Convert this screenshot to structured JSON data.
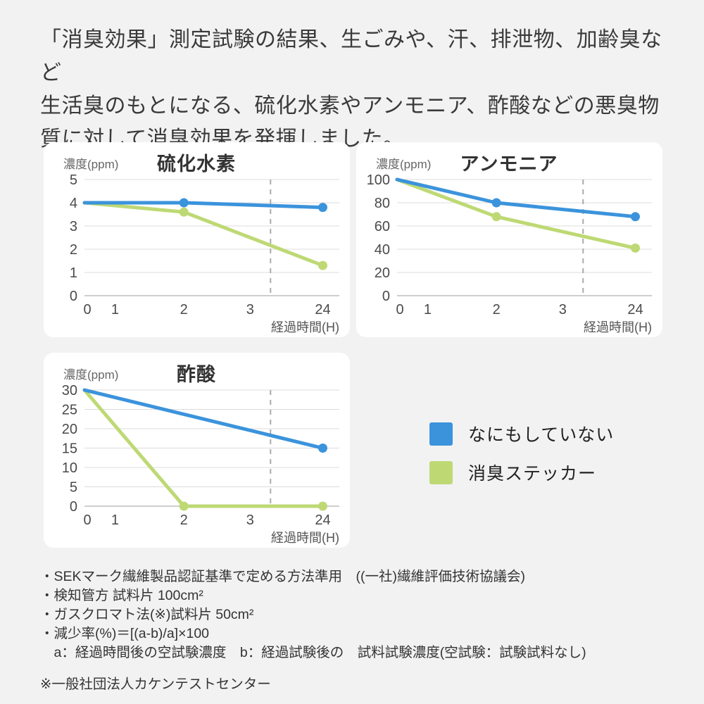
{
  "header": {
    "text": "「消臭効果」測定試験の結果、生ごみや、汗、排泄物、加齢臭など\n生活臭のもとになる、硫化水素やアンモニア、酢酸などの悪臭物\n質に対して消臭効果を発揮しました。"
  },
  "chart_data": [
    {
      "type": "line",
      "title": "硫化水素",
      "unit_label": "濃度(ppm)",
      "xlabel": "経過時間(H)",
      "x_ticks": [
        "0",
        "1",
        "2",
        "3",
        "24"
      ],
      "ylim": [
        0,
        5
      ],
      "y_ticks": [
        0,
        1,
        2,
        3,
        4,
        5
      ],
      "axis_break_dashed_line": true,
      "grid": true,
      "series": [
        {
          "name": "なにもしていない",
          "color": "#3b93dc",
          "x": [
            0,
            2,
            24
          ],
          "values": [
            4,
            4,
            3.8
          ]
        },
        {
          "name": "消臭ステッカー",
          "color": "#bed974",
          "x": [
            0,
            2,
            24
          ],
          "values": [
            4,
            3.6,
            1.3
          ]
        }
      ]
    },
    {
      "type": "line",
      "title": "アンモニア",
      "unit_label": "濃度(ppm)",
      "xlabel": "経過時間(H)",
      "x_ticks": [
        "0",
        "1",
        "2",
        "3",
        "24"
      ],
      "ylim": [
        0,
        100
      ],
      "y_ticks": [
        0,
        20,
        40,
        60,
        80,
        100
      ],
      "axis_break_dashed_line": true,
      "grid": true,
      "series": [
        {
          "name": "なにもしていない",
          "color": "#3b93dc",
          "x": [
            0,
            2,
            24
          ],
          "values": [
            100,
            80,
            68
          ]
        },
        {
          "name": "消臭ステッカー",
          "color": "#bed974",
          "x": [
            0,
            2,
            24
          ],
          "values": [
            100,
            68,
            41
          ]
        }
      ]
    },
    {
      "type": "line",
      "title": "酢酸",
      "unit_label": "濃度(ppm)",
      "xlabel": "経過時間(H)",
      "x_ticks": [
        "0",
        "1",
        "2",
        "3",
        "24"
      ],
      "ylim": [
        0,
        30
      ],
      "y_ticks": [
        0,
        5,
        10,
        15,
        20,
        25,
        30
      ],
      "axis_break_dashed_line": true,
      "grid": true,
      "series": [
        {
          "name": "なにもしていない",
          "color": "#3b93dc",
          "x": [
            0,
            24
          ],
          "values": [
            30,
            15
          ]
        },
        {
          "name": "消臭ステッカー",
          "color": "#bed974",
          "x": [
            0,
            2,
            24
          ],
          "values": [
            30,
            0,
            0
          ]
        }
      ]
    }
  ],
  "legend": {
    "items": [
      {
        "label": "なにもしていない",
        "color": "#3b93dc"
      },
      {
        "label": "消臭ステッカー",
        "color": "#bed974"
      }
    ]
  },
  "footer": {
    "notes": [
      "・SEKマーク繊維製品認証基準で定める方法準用　((一社)繊維評価技術協議会)",
      "・検知管方 試料片 100cm²",
      "・ガスクロマト法(※)試料片 50cm²",
      "・減少率(%)＝[(a-b)/a]×100",
      "　a：経過時間後の空試験濃度　b：経過試験後の　試料試験濃度(空試験：試験試料なし)"
    ],
    "footnote": "※一般社団法人カケンテストセンター"
  },
  "colors": {
    "background": "#f2f2f3",
    "card": "#ffffff",
    "grid": "#dcdcdc",
    "axis": "#bdbdbd",
    "break_line": "#ababab",
    "tick_text": "#4a4a4a",
    "title_text": "#333333"
  }
}
